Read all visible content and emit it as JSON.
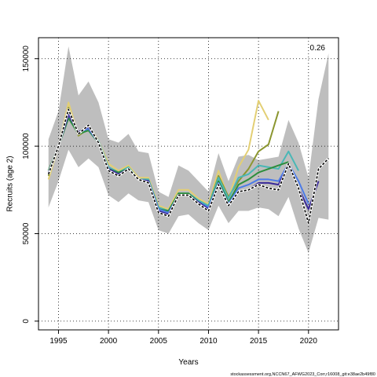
{
  "chart_data": {
    "type": "line",
    "xlabel": "Years",
    "ylabel": "Recruits (age 2)",
    "xlim": [
      1993,
      2023
    ],
    "ylim": [
      -5000,
      162000
    ],
    "x_ticks": [
      1995,
      2000,
      2005,
      2010,
      2015,
      2020
    ],
    "y_ticks": [
      0,
      50000,
      100000,
      150000
    ],
    "grid": true,
    "annotation": "0.26",
    "footer": "stockassessment.org,NCCN67_AFWG2023_Corr,r16008_git:e38ae2b49f80",
    "band": {
      "color": "#bebebe",
      "x": [
        1994,
        1995,
        1996,
        1997,
        1998,
        1999,
        2000,
        2001,
        2002,
        2003,
        2004,
        2005,
        2006,
        2007,
        2008,
        2009,
        2010,
        2011,
        2012,
        2013,
        2014,
        2015,
        2016,
        2017,
        2018,
        2019,
        2020,
        2021,
        2022
      ],
      "upper": [
        104000,
        120000,
        157000,
        129000,
        137000,
        125000,
        104000,
        102000,
        107000,
        97000,
        96000,
        74000,
        71000,
        89000,
        86000,
        80000,
        74000,
        96000,
        80000,
        94000,
        95000,
        92000,
        93000,
        94000,
        115000,
        102000,
        82000,
        127000,
        153000
      ],
      "lower": [
        65000,
        80000,
        98000,
        88000,
        93000,
        88000,
        72000,
        68000,
        73000,
        69000,
        68000,
        52000,
        50000,
        60000,
        61000,
        56000,
        52000,
        66000,
        56000,
        63000,
        63000,
        65000,
        64000,
        60000,
        71000,
        53000,
        39000,
        59000,
        58000
      ]
    },
    "series": [
      {
        "color": "#e3cf74",
        "width": 2,
        "dash": false,
        "x": [
          1994,
          1995,
          1996,
          1997,
          1998,
          1999,
          2000,
          2001,
          2002,
          2003,
          2004,
          2005,
          2006,
          2007,
          2008,
          2009,
          2010,
          2011,
          2012,
          2013,
          2014,
          2015,
          2016
        ],
        "values": [
          81000,
          100000,
          125000,
          106000,
          112000,
          103000,
          90000,
          86000,
          89000,
          82000,
          82000,
          66000,
          64000,
          75000,
          75000,
          70000,
          67000,
          86000,
          70000,
          88000,
          98000,
          126000,
          115000
        ]
      },
      {
        "color": "#8b9630",
        "width": 2,
        "dash": false,
        "x": [
          1994,
          1995,
          1996,
          1997,
          1998,
          1999,
          2000,
          2001,
          2002,
          2003,
          2004,
          2005,
          2006,
          2007,
          2008,
          2009,
          2010,
          2011,
          2012,
          2013,
          2014,
          2015,
          2016,
          2017
        ],
        "values": [
          83000,
          100000,
          122000,
          106000,
          110000,
          102000,
          88000,
          85000,
          88000,
          81000,
          81000,
          65000,
          63000,
          73000,
          73000,
          69000,
          66000,
          83000,
          71000,
          80000,
          87000,
          97000,
          101000,
          120000
        ]
      },
      {
        "color": "#49b7b6",
        "width": 2,
        "dash": false,
        "x": [
          1994,
          1995,
          1996,
          1997,
          1998,
          1999,
          2000,
          2001,
          2002,
          2003,
          2004,
          2005,
          2006,
          2007,
          2008,
          2009,
          2010,
          2011,
          2012,
          2013,
          2014,
          2015,
          2016,
          2017,
          2018,
          2019
        ],
        "values": [
          85000,
          100000,
          118000,
          107000,
          110000,
          103000,
          88000,
          85000,
          88000,
          81000,
          81000,
          65000,
          63000,
          73000,
          73000,
          69000,
          66000,
          82000,
          70000,
          82000,
          84000,
          89000,
          88000,
          87000,
          97000,
          86000
        ]
      },
      {
        "color": "#2d8e3c",
        "width": 2,
        "dash": false,
        "x": [
          1994,
          1995,
          1996,
          1997,
          1998,
          1999,
          2000,
          2001,
          2002,
          2003,
          2004,
          2005,
          2006,
          2007,
          2008,
          2009,
          2010,
          2011,
          2012,
          2013,
          2014,
          2015,
          2016,
          2017,
          2018
        ],
        "values": [
          86000,
          100000,
          116000,
          107000,
          109000,
          102000,
          87000,
          85000,
          87000,
          81000,
          80000,
          64000,
          63000,
          73000,
          73000,
          68000,
          65000,
          80000,
          68000,
          78000,
          81000,
          85000,
          87000,
          89000,
          91000
        ]
      },
      {
        "color": "#4c7be8",
        "width": 2,
        "dash": false,
        "x": [
          1994,
          1995,
          1996,
          1997,
          1998,
          1999,
          2000,
          2001,
          2002,
          2003,
          2004,
          2005,
          2006,
          2007,
          2008,
          2009,
          2010,
          2011,
          2012,
          2013,
          2014,
          2015,
          2016,
          2017,
          2018,
          2019,
          2020
        ],
        "values": [
          85000,
          100000,
          118000,
          108000,
          110000,
          102000,
          87000,
          84000,
          87000,
          81000,
          80000,
          64000,
          62000,
          72000,
          72000,
          68000,
          65000,
          79000,
          67000,
          76000,
          78000,
          81000,
          81000,
          80000,
          90000,
          80000,
          67000
        ]
      },
      {
        "color": "#3a2a9a",
        "width": 2,
        "dash": false,
        "x": [
          1994,
          1995,
          1996,
          1997,
          1998,
          1999,
          2000,
          2001,
          2002,
          2003,
          2004,
          2005,
          2006,
          2007,
          2008,
          2009,
          2010,
          2011,
          2012,
          2013,
          2014,
          2015,
          2016,
          2017,
          2018,
          2019,
          2020,
          2021
        ],
        "values": [
          85000,
          100000,
          118000,
          108000,
          111000,
          102000,
          87000,
          84000,
          87000,
          81000,
          80000,
          63000,
          61000,
          72000,
          72000,
          68000,
          64000,
          78000,
          66000,
          74000,
          75000,
          79000,
          79000,
          78000,
          89000,
          76000,
          64000,
          80000
        ]
      },
      {
        "color": "#000000",
        "width": 1.6,
        "dash": true,
        "x": [
          1994,
          1995,
          1996,
          1997,
          1998,
          1999,
          2000,
          2001,
          2002,
          2003,
          2004,
          2005,
          2006,
          2007,
          2008,
          2009,
          2010,
          2011,
          2012,
          2013,
          2014,
          2015,
          2016,
          2017,
          2018,
          2019,
          2020,
          2021,
          2022
        ],
        "values": [
          84000,
          100000,
          121000,
          107000,
          112000,
          102000,
          86000,
          83000,
          87000,
          81000,
          79000,
          62000,
          60000,
          72000,
          72000,
          67000,
          63000,
          78000,
          66000,
          74000,
          75000,
          78000,
          76000,
          75000,
          90000,
          76000,
          56000,
          87000,
          93000
        ]
      }
    ]
  }
}
